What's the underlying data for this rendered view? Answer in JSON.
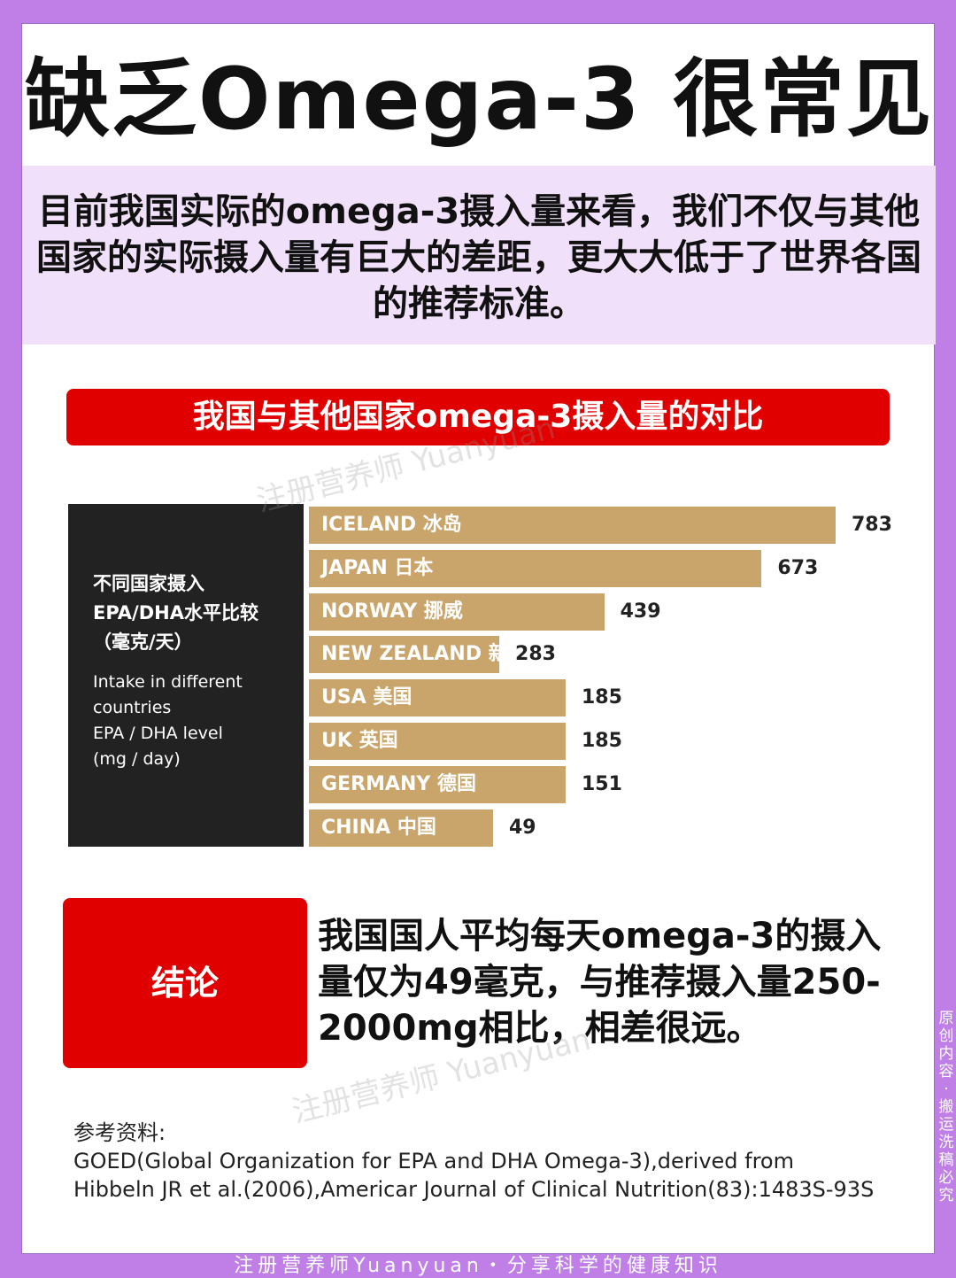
{
  "title": "缺乏Omega-3 很常见",
  "intro": "目前我国实际的omega-3摄入量来看，我们不仅与其他国家的实际摄入量有巨大的差距，更大大低于了世界各国的推荐标准。",
  "banner": "我国与其他国家omega-3摄入量的对比",
  "chart_data": {
    "type": "bar",
    "title_zh": [
      "不同国家摄入",
      "EPA/DHA水平比较",
      "（毫克/天）"
    ],
    "title_en": [
      "Intake in different",
      "countries",
      "EPA / DHA level",
      "(mg / day)"
    ],
    "categories": [
      "ICELAND 冰岛",
      "JAPAN 日本",
      "NORWAY 挪威",
      "NEW ZEALAND 新西兰",
      "USA 美国",
      "UK 英国",
      "GERMANY 德国",
      "CHINA 中国"
    ],
    "values": [
      783,
      673,
      439,
      283,
      185,
      185,
      151,
      49
    ],
    "value_labels": [
      "783",
      "673",
      "439",
      "283",
      "185",
      "185",
      "151",
      "49"
    ],
    "orientation": "horizontal",
    "bar_color": "#c9a46b",
    "xlim": [
      0,
      783
    ]
  },
  "conclusion": {
    "label": "结论",
    "text": "我国国人平均每天omega-3的摄入量仅为49毫克，与推荐摄入量250-2000mg相比，相差很远。"
  },
  "references": {
    "heading": "参考资料:",
    "line1": "GOED(Global Organization for EPA and DHA Omega-3),derived from",
    "line2": "Hibbeln JR et al.(2006),Americar Journal of Clinical Nutrition(83):1483S-93S"
  },
  "watermark": "注册营养师 Yuanyuan",
  "side_note": "原创内容·搬运洗稿必究",
  "footer": "注册营养师Yuanyuan・分享科学的健康知识",
  "colors": {
    "background": "#bf7fe6",
    "accent_red": "#e00000",
    "intro_bg": "#f1e0fa",
    "bar": "#c9a46b",
    "chart_panel": "#222222"
  }
}
